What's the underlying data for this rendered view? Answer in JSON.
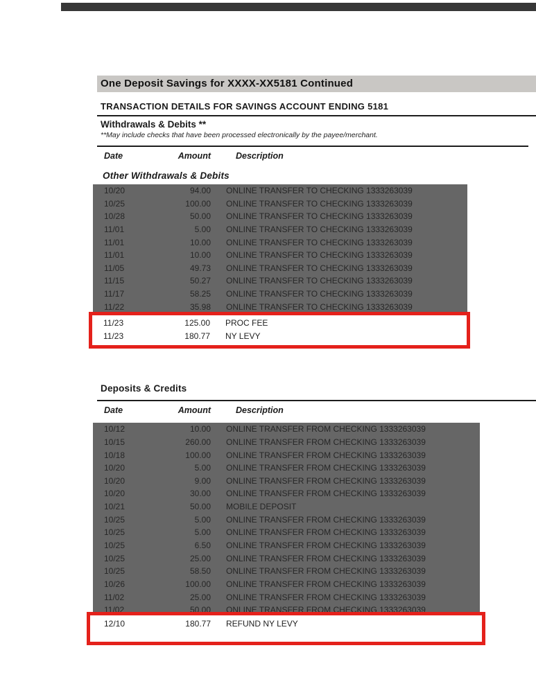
{
  "header": {
    "title": "One Deposit Savings for XXXX-XX5181 Continued"
  },
  "section": {
    "title": "TRANSACTION DETAILS FOR SAVINGS ACCOUNT ENDING 5181"
  },
  "table_headers": {
    "date": "Date",
    "amount": "Amount",
    "description": "Description"
  },
  "withdrawals": {
    "title": "Withdrawals & Debits **",
    "note": "**May include checks that have been processed electronically by the payee/merchant.",
    "group_title": "Other Withdrawals & Debits",
    "highlighted_rows": [
      {
        "date": "10/20",
        "amount": "94.00",
        "description": "ONLINE TRANSFER TO CHECKING 1333263039"
      },
      {
        "date": "10/25",
        "amount": "100.00",
        "description": "ONLINE TRANSFER TO CHECKING 1333263039"
      },
      {
        "date": "10/28",
        "amount": "50.00",
        "description": "ONLINE TRANSFER TO CHECKING 1333263039"
      },
      {
        "date": "11/01",
        "amount": "5.00",
        "description": "ONLINE TRANSFER TO CHECKING 1333263039"
      },
      {
        "date": "11/01",
        "amount": "10.00",
        "description": "ONLINE TRANSFER TO CHECKING 1333263039"
      },
      {
        "date": "11/01",
        "amount": "10.00",
        "description": "ONLINE TRANSFER TO CHECKING 1333263039"
      },
      {
        "date": "11/05",
        "amount": "49.73",
        "description": "ONLINE TRANSFER TO CHECKING 1333263039"
      },
      {
        "date": "11/15",
        "amount": "50.27",
        "description": "ONLINE TRANSFER TO CHECKING 1333263039"
      },
      {
        "date": "11/17",
        "amount": "58.25",
        "description": "ONLINE TRANSFER TO CHECKING 1333263039"
      },
      {
        "date": "11/22",
        "amount": "35.98",
        "description": "ONLINE TRANSFER TO CHECKING 1333263039"
      }
    ],
    "boxed_rows": [
      {
        "date": "11/23",
        "amount": "125.00",
        "description": "PROC FEE"
      },
      {
        "date": "11/23",
        "amount": "180.77",
        "description": "NY LEVY"
      }
    ]
  },
  "deposits": {
    "title": "Deposits & Credits",
    "highlighted_rows": [
      {
        "date": "10/12",
        "amount": "10.00",
        "description": "ONLINE TRANSFER FROM CHECKING 1333263039"
      },
      {
        "date": "10/15",
        "amount": "260.00",
        "description": "ONLINE TRANSFER FROM CHECKING 1333263039"
      },
      {
        "date": "10/18",
        "amount": "100.00",
        "description": "ONLINE TRANSFER FROM CHECKING 1333263039"
      },
      {
        "date": "10/20",
        "amount": "5.00",
        "description": "ONLINE TRANSFER FROM CHECKING 1333263039"
      },
      {
        "date": "10/20",
        "amount": "9.00",
        "description": "ONLINE TRANSFER FROM CHECKING 1333263039"
      },
      {
        "date": "10/20",
        "amount": "30.00",
        "description": "ONLINE TRANSFER FROM CHECKING 1333263039"
      },
      {
        "date": "10/21",
        "amount": "50.00",
        "description": "MOBILE DEPOSIT"
      },
      {
        "date": "10/25",
        "amount": "5.00",
        "description": "ONLINE TRANSFER FROM CHECKING 1333263039"
      },
      {
        "date": "10/25",
        "amount": "5.00",
        "description": "ONLINE TRANSFER FROM CHECKING 1333263039"
      },
      {
        "date": "10/25",
        "amount": "6.50",
        "description": "ONLINE TRANSFER FROM CHECKING 1333263039"
      },
      {
        "date": "10/25",
        "amount": "25.00",
        "description": "ONLINE TRANSFER FROM CHECKING 1333263039"
      },
      {
        "date": "10/25",
        "amount": "58.50",
        "description": "ONLINE TRANSFER FROM CHECKING 1333263039"
      },
      {
        "date": "10/26",
        "amount": "100.00",
        "description": "ONLINE TRANSFER FROM CHECKING 1333263039"
      },
      {
        "date": "11/02",
        "amount": "25.00",
        "description": "ONLINE TRANSFER FROM CHECKING 1333263039"
      },
      {
        "date": "11/02",
        "amount": "50.00",
        "description": "ONLINE TRANSFER FROM CHECKING 1333263039"
      }
    ],
    "boxed_rows": [
      {
        "date": "12/10",
        "amount": "180.77",
        "description": "REFUND NY LEVY"
      }
    ]
  },
  "colors": {
    "highlight_bg": "#666666",
    "highlight_text": "#262626",
    "annotation_red": "#e4211b",
    "header_bar_bg": "#c9c7c4",
    "top_bar": "#373737",
    "rule": "#1c1c1c"
  }
}
